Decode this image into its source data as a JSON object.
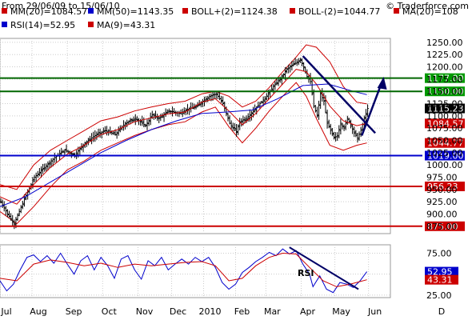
{
  "header": {
    "date_range": "From 29/06/09 to 15/06/10",
    "copyright": "© Traderforce.com"
  },
  "legend": [
    {
      "label": "MM(20)=1084.57",
      "color": "#cc0000"
    },
    {
      "label": "MM(50)=1143.35",
      "color": "#0000cc"
    },
    {
      "label": "BOLL+(2)=1124.38",
      "color": "#cc0000"
    },
    {
      "label": "BOLL-(2)=1044.77",
      "color": "#cc0000"
    },
    {
      "label": "MA(20)=108",
      "color": "#cc0000"
    },
    {
      "label": "RSI(14)=52.95",
      "color": "#0000cc"
    },
    {
      "label": "MA(9)=43.31",
      "color": "#cc0000"
    }
  ],
  "colors": {
    "price_bars": "#000000",
    "ma20": "#cc0000",
    "ma50": "#0000cc",
    "bollinger": "#cc0000",
    "resistance": "#006600",
    "support_blue": "#0000cc",
    "support_red": "#cc0000",
    "trendline": "#000066",
    "grid": "#cccccc"
  },
  "chart_data": {
    "type": "candlestick",
    "x_months": [
      "Jul",
      "Aug",
      "Sep",
      "Oct",
      "Nov",
      "Dec",
      "2010",
      "Feb",
      "Mar",
      "Apr",
      "May",
      "Jun",
      "D"
    ],
    "y_ticks": [
      875,
      900,
      925,
      950,
      975,
      1000,
      1025,
      1050,
      1075,
      1100,
      1125,
      1150,
      1175,
      1200,
      1225,
      1250
    ],
    "y_tick_labels": [
      "875.00",
      "900.00",
      "925.00",
      "950.00",
      "975.00",
      "1000.00",
      "1025.00",
      "1050.00",
      "1075.00",
      "1100.00",
      "1125.00",
      "1150.00",
      "1175.00",
      "1200.00",
      "1225.00",
      "1250.00"
    ],
    "ylim": [
      860,
      1258
    ],
    "price_points": [
      [
        0,
        925
      ],
      [
        4,
        900
      ],
      [
        8,
        880
      ],
      [
        14,
        930
      ],
      [
        20,
        975
      ],
      [
        26,
        995
      ],
      [
        32,
        1015
      ],
      [
        38,
        1030
      ],
      [
        44,
        1020
      ],
      [
        50,
        1045
      ],
      [
        56,
        1060
      ],
      [
        62,
        1070
      ],
      [
        68,
        1062
      ],
      [
        74,
        1085
      ],
      [
        80,
        1095
      ],
      [
        86,
        1080
      ],
      [
        90,
        1102
      ],
      [
        94,
        1095
      ],
      [
        100,
        1110
      ],
      [
        106,
        1105
      ],
      [
        112,
        1115
      ],
      [
        116,
        1118
      ],
      [
        120,
        1130
      ],
      [
        124,
        1140
      ],
      [
        128,
        1145
      ],
      [
        132,
        1125
      ],
      [
        134,
        1105
      ],
      [
        136,
        1085
      ],
      [
        138,
        1075
      ],
      [
        140,
        1068
      ],
      [
        142,
        1088
      ],
      [
        146,
        1095
      ],
      [
        150,
        1110
      ],
      [
        154,
        1125
      ],
      [
        158,
        1140
      ],
      [
        162,
        1160
      ],
      [
        166,
        1175
      ],
      [
        170,
        1195
      ],
      [
        174,
        1205
      ],
      [
        178,
        1215
      ],
      [
        180,
        1200
      ],
      [
        182,
        1180
      ],
      [
        184,
        1170
      ],
      [
        186,
        1120
      ],
      [
        188,
        1100
      ],
      [
        190,
        1145
      ],
      [
        192,
        1130
      ],
      [
        194,
        1085
      ],
      [
        196,
        1070
      ],
      [
        198,
        1055
      ],
      [
        200,
        1060
      ],
      [
        202,
        1085
      ],
      [
        204,
        1075
      ],
      [
        206,
        1095
      ],
      [
        208,
        1082
      ],
      [
        210,
        1065
      ],
      [
        212,
        1055
      ],
      [
        214,
        1070
      ],
      [
        216,
        1095
      ],
      [
        218,
        1115
      ]
    ],
    "ma20_points": [
      [
        0,
        935
      ],
      [
        10,
        920
      ],
      [
        20,
        960
      ],
      [
        30,
        995
      ],
      [
        40,
        1022
      ],
      [
        50,
        1040
      ],
      [
        60,
        1062
      ],
      [
        70,
        1072
      ],
      [
        80,
        1088
      ],
      [
        90,
        1096
      ],
      [
        100,
        1104
      ],
      [
        110,
        1108
      ],
      [
        120,
        1128
      ],
      [
        128,
        1135
      ],
      [
        136,
        1110
      ],
      [
        144,
        1082
      ],
      [
        152,
        1105
      ],
      [
        160,
        1135
      ],
      [
        168,
        1165
      ],
      [
        176,
        1195
      ],
      [
        182,
        1190
      ],
      [
        188,
        1165
      ],
      [
        196,
        1120
      ],
      [
        204,
        1090
      ],
      [
        212,
        1080
      ],
      [
        218,
        1084.57
      ]
    ],
    "ma50_points": [
      [
        0,
        915
      ],
      [
        15,
        935
      ],
      [
        30,
        965
      ],
      [
        45,
        995
      ],
      [
        60,
        1025
      ],
      [
        75,
        1050
      ],
      [
        90,
        1072
      ],
      [
        105,
        1090
      ],
      [
        120,
        1105
      ],
      [
        135,
        1108
      ],
      [
        150,
        1112
      ],
      [
        165,
        1135
      ],
      [
        180,
        1162
      ],
      [
        195,
        1165
      ],
      [
        210,
        1150
      ],
      [
        218,
        1143.35
      ]
    ],
    "boll_upper_points": [
      [
        0,
        960
      ],
      [
        10,
        950
      ],
      [
        20,
        1000
      ],
      [
        30,
        1030
      ],
      [
        40,
        1050
      ],
      [
        50,
        1070
      ],
      [
        60,
        1090
      ],
      [
        70,
        1098
      ],
      [
        80,
        1110
      ],
      [
        90,
        1118
      ],
      [
        100,
        1125
      ],
      [
        110,
        1130
      ],
      [
        120,
        1145
      ],
      [
        128,
        1150
      ],
      [
        136,
        1140
      ],
      [
        144,
        1118
      ],
      [
        152,
        1130
      ],
      [
        160,
        1158
      ],
      [
        168,
        1190
      ],
      [
        176,
        1220
      ],
      [
        182,
        1245
      ],
      [
        188,
        1240
      ],
      [
        196,
        1210
      ],
      [
        204,
        1160
      ],
      [
        212,
        1128
      ],
      [
        218,
        1124.38
      ]
    ],
    "boll_lower_points": [
      [
        0,
        905
      ],
      [
        10,
        880
      ],
      [
        20,
        915
      ],
      [
        30,
        955
      ],
      [
        40,
        990
      ],
      [
        50,
        1008
      ],
      [
        60,
        1030
      ],
      [
        70,
        1045
      ],
      [
        80,
        1060
      ],
      [
        90,
        1072
      ],
      [
        100,
        1082
      ],
      [
        110,
        1088
      ],
      [
        120,
        1108
      ],
      [
        128,
        1118
      ],
      [
        136,
        1078
      ],
      [
        144,
        1045
      ],
      [
        152,
        1075
      ],
      [
        160,
        1110
      ],
      [
        168,
        1140
      ],
      [
        176,
        1168
      ],
      [
        182,
        1140
      ],
      [
        188,
        1095
      ],
      [
        196,
        1040
      ],
      [
        204,
        1030
      ],
      [
        212,
        1040
      ],
      [
        218,
        1044.77
      ]
    ],
    "horizontal_levels": [
      {
        "value": 1177,
        "label": "1177.00",
        "color": "#006600",
        "label_bg": "#009900"
      },
      {
        "value": 1150,
        "label": "1150.00",
        "color": "#006600",
        "label_bg": "#009900"
      },
      {
        "value": 1019,
        "label": "1019.00",
        "color": "#0000cc",
        "label_bg": "#0000cc"
      },
      {
        "value": 956.23,
        "label": "956.23",
        "color": "#cc0000",
        "label_bg": "#cc0000"
      },
      {
        "value": 875,
        "label": "875.00",
        "color": "#cc0000",
        "label_bg": "#cc0000"
      }
    ],
    "price_tags": [
      {
        "value": 1115.23,
        "label": "1115.23",
        "bg": "#000000"
      },
      {
        "value": 1084.57,
        "label": "1084.57",
        "bg": "#cc0000"
      },
      {
        "value": 1044.77,
        "label": "1044.77",
        "bg": "#cc0000"
      }
    ],
    "rsi": {
      "label": "RSI",
      "y_ticks": [
        25,
        50,
        75
      ],
      "y_tick_labels": [
        "25.00",
        "50.00",
        "75.00"
      ],
      "ylim": [
        22,
        85
      ],
      "rsi_points": [
        [
          0,
          42
        ],
        [
          4,
          30
        ],
        [
          8,
          38
        ],
        [
          12,
          55
        ],
        [
          16,
          70
        ],
        [
          20,
          73
        ],
        [
          24,
          65
        ],
        [
          28,
          72
        ],
        [
          32,
          63
        ],
        [
          36,
          75
        ],
        [
          40,
          62
        ],
        [
          44,
          50
        ],
        [
          48,
          66
        ],
        [
          52,
          72
        ],
        [
          56,
          55
        ],
        [
          60,
          70
        ],
        [
          64,
          60
        ],
        [
          68,
          45
        ],
        [
          72,
          68
        ],
        [
          76,
          72
        ],
        [
          80,
          55
        ],
        [
          84,
          44
        ],
        [
          88,
          66
        ],
        [
          92,
          60
        ],
        [
          96,
          70
        ],
        [
          100,
          55
        ],
        [
          104,
          62
        ],
        [
          108,
          68
        ],
        [
          112,
          62
        ],
        [
          116,
          70
        ],
        [
          120,
          65
        ],
        [
          124,
          70
        ],
        [
          128,
          58
        ],
        [
          132,
          40
        ],
        [
          136,
          32
        ],
        [
          140,
          38
        ],
        [
          144,
          52
        ],
        [
          148,
          58
        ],
        [
          152,
          65
        ],
        [
          156,
          70
        ],
        [
          160,
          76
        ],
        [
          164,
          72
        ],
        [
          168,
          80
        ],
        [
          172,
          74
        ],
        [
          176,
          78
        ],
        [
          180,
          62
        ],
        [
          184,
          50
        ],
        [
          186,
          35
        ],
        [
          190,
          48
        ],
        [
          194,
          32
        ],
        [
          198,
          28
        ],
        [
          202,
          40
        ],
        [
          206,
          38
        ],
        [
          210,
          34
        ],
        [
          214,
          42
        ],
        [
          218,
          52.95
        ]
      ],
      "ma9_points": [
        [
          0,
          45
        ],
        [
          10,
          42
        ],
        [
          20,
          62
        ],
        [
          30,
          67
        ],
        [
          40,
          64
        ],
        [
          50,
          60
        ],
        [
          60,
          63
        ],
        [
          70,
          58
        ],
        [
          80,
          62
        ],
        [
          90,
          60
        ],
        [
          100,
          62
        ],
        [
          110,
          64
        ],
        [
          120,
          65
        ],
        [
          128,
          60
        ],
        [
          136,
          42
        ],
        [
          144,
          45
        ],
        [
          152,
          60
        ],
        [
          160,
          70
        ],
        [
          168,
          75
        ],
        [
          176,
          74
        ],
        [
          184,
          58
        ],
        [
          192,
          42
        ],
        [
          200,
          35
        ],
        [
          208,
          38
        ],
        [
          218,
          43.31
        ]
      ],
      "tags": [
        {
          "value": 52.95,
          "label": "52.95",
          "bg": "#0000cc"
        },
        {
          "value": 43.31,
          "label": "43.31",
          "bg": "#cc0000"
        }
      ]
    }
  }
}
